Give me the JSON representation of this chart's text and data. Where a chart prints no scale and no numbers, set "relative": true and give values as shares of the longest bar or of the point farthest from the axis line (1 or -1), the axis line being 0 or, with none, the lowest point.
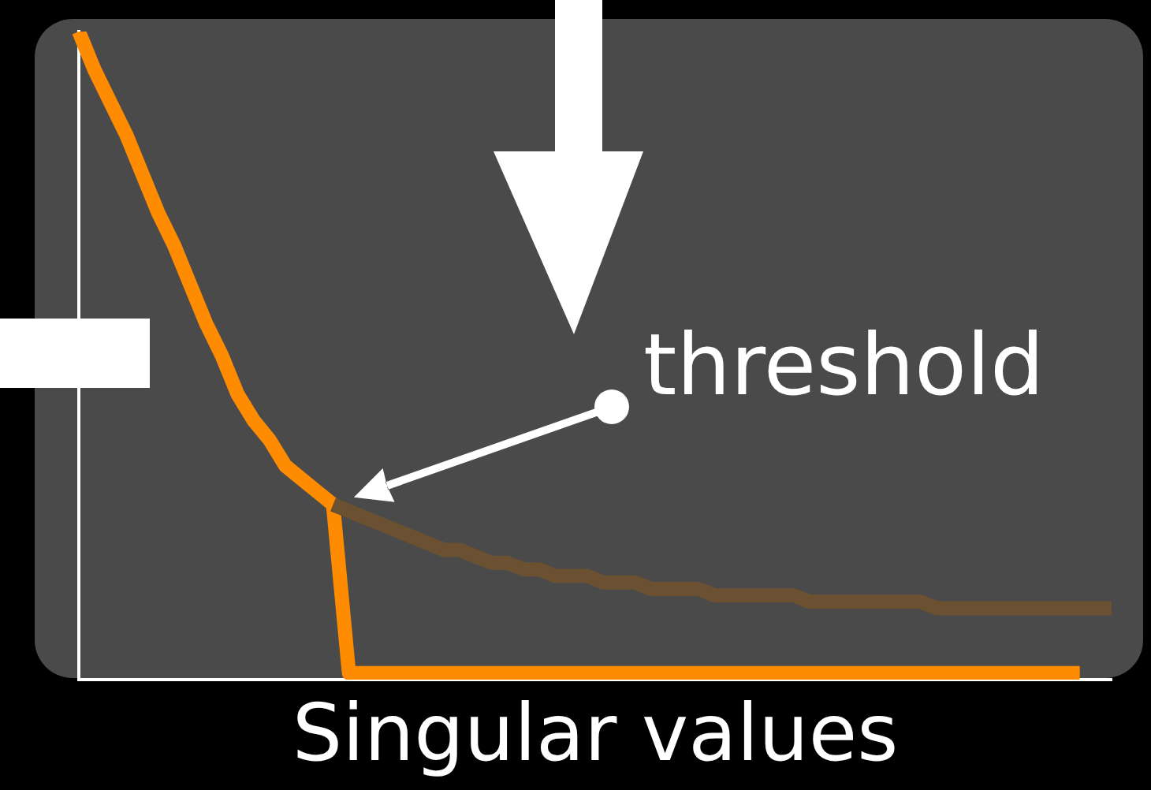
{
  "chart_data": {
    "type": "line",
    "xlabel": "Singular values",
    "relative": true,
    "grid": false,
    "legend": false,
    "marker": "none",
    "annotations": [
      "threshold"
    ],
    "categories": [
      null,
      null,
      null,
      null,
      null,
      null,
      null,
      null,
      null,
      null,
      null,
      null,
      null,
      null,
      null,
      null,
      null,
      null,
      null,
      null,
      null,
      null,
      null,
      null,
      null,
      null,
      null,
      null,
      null,
      null,
      null,
      null,
      null,
      null,
      null,
      null,
      null,
      null,
      null,
      null,
      null,
      null,
      null,
      null,
      null,
      null,
      null,
      null,
      null,
      null,
      null,
      null,
      null,
      null,
      null,
      null,
      null,
      null,
      null,
      null,
      null,
      null,
      null,
      null,
      null,
      null
    ],
    "series": [
      {
        "color": "#6b5132",
        "values": [
          null,
          null,
          null,
          null,
          null,
          null,
          null,
          null,
          null,
          null,
          null,
          null,
          null,
          null,
          null,
          null,
          0.27,
          0.26,
          0.25,
          0.24,
          0.23,
          0.22,
          0.21,
          0.2,
          0.2,
          0.19,
          0.18,
          0.18,
          0.17,
          0.17,
          0.16,
          0.16,
          0.16,
          0.15,
          0.15,
          0.15,
          0.14,
          0.14,
          0.14,
          0.14,
          0.13,
          0.13,
          0.13,
          0.13,
          0.13,
          0.13,
          0.12,
          0.12,
          0.12,
          0.12,
          0.12,
          0.12,
          0.12,
          0.12,
          0.11,
          0.11,
          0.11,
          0.11,
          0.11,
          0.11,
          0.11,
          0.11,
          0.11,
          0.11,
          0.11,
          0.11
        ]
      },
      {
        "color": "#ff8c00",
        "values": [
          1.0,
          0.94,
          0.89,
          0.84,
          0.78,
          0.72,
          0.67,
          0.61,
          0.55,
          0.5,
          0.44,
          0.4,
          0.37,
          0.33,
          0.31,
          0.29,
          0.27,
          0.01,
          0.01,
          0.01,
          0.01,
          0.01,
          0.01,
          0.01,
          0.01,
          0.01,
          0.01,
          0.01,
          0.01,
          0.01,
          0.01,
          0.01,
          0.01,
          0.01,
          0.01,
          0.01,
          0.01,
          0.01,
          0.01,
          0.01,
          0.01,
          0.01,
          0.01,
          0.01,
          0.01,
          0.01,
          0.01,
          0.01,
          0.01,
          0.01,
          0.01,
          0.01,
          0.01,
          0.01,
          0.01,
          0.01,
          0.01,
          0.01,
          0.01,
          0.01,
          0.01,
          0.01,
          0.01,
          0.01,
          null,
          null
        ]
      }
    ]
  }
}
